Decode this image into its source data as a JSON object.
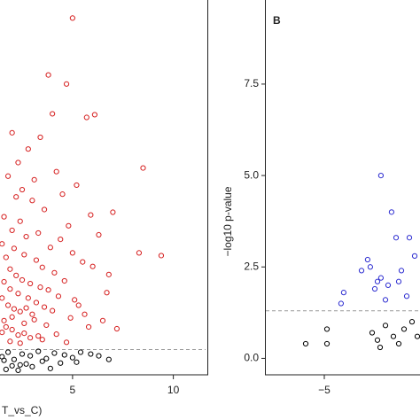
{
  "chart_data": [
    {
      "type": "scatter",
      "x_label": "T_vs_C)",
      "xlim": [
        1.4,
        11.6
      ],
      "ylim": [
        -1.5,
        40
      ],
      "xticks": [
        5,
        10
      ],
      "threshold": 1.3,
      "series": [
        {
          "color": "#d62020",
          "x": [
            5.0,
            3.8,
            4.7,
            5.7,
            6.1,
            4.0,
            2.0,
            3.4,
            8.5,
            9.4,
            7.0,
            8.3,
            6.8,
            6.7,
            5.6,
            2.3,
            2.8,
            3.1,
            2.5,
            3.0,
            4.2,
            4.5,
            5.2,
            4.8,
            5.9,
            6.3,
            3.6,
            2.2,
            1.8,
            1.6,
            2.0,
            2.4,
            2.7,
            3.3,
            3.9,
            4.4,
            5.0,
            5.5,
            6.0,
            2.1,
            2.6,
            3.2,
            3.5,
            4.1,
            4.6,
            1.5,
            1.7,
            1.9,
            2.2,
            2.5,
            2.9,
            3.4,
            3.8,
            4.3,
            5.1,
            1.6,
            1.9,
            2.3,
            2.8,
            3.2,
            1.5,
            1.8,
            2.1,
            2.4,
            2.7,
            3.0,
            3.6,
            4.0,
            4.9,
            5.3,
            1.6,
            2.0,
            2.6,
            3.1,
            3.7,
            1.5,
            1.7,
            2.0,
            2.3,
            2.6,
            2.9,
            3.3,
            4.2,
            5.8,
            6.5,
            7.2,
            1.9,
            2.4,
            3.5,
            4.7
          ],
          "values": [
            38.0,
            31.7,
            30.7,
            27.0,
            27.3,
            27.4,
            25.3,
            24.8,
            21.4,
            11.7,
            16.5,
            12.0,
            9.6,
            7.6,
            5.2,
            22.0,
            23.5,
            20.1,
            19.0,
            17.8,
            21.0,
            18.5,
            19.5,
            15.0,
            16.2,
            14.0,
            16.8,
            18.2,
            20.5,
            16.0,
            14.5,
            15.5,
            13.8,
            14.2,
            12.6,
            13.5,
            12.0,
            11.0,
            10.5,
            12.5,
            11.8,
            11.2,
            10.4,
            9.8,
            8.9,
            13.0,
            11.5,
            10.2,
            9.5,
            9.0,
            8.6,
            8.2,
            7.9,
            7.2,
            6.8,
            8.8,
            8.0,
            7.5,
            7.0,
            6.5,
            7.0,
            6.2,
            5.8,
            5.5,
            5.9,
            5.2,
            6.0,
            5.6,
            4.8,
            6.2,
            4.5,
            4.9,
            4.2,
            4.6,
            4.0,
            3.2,
            3.8,
            3.5,
            2.9,
            3.1,
            2.6,
            2.8,
            3.0,
            3.8,
            4.5,
            3.6,
            2.2,
            2.0,
            2.4,
            2.1
          ]
        },
        {
          "color": "#000000",
          "x": [
            1.5,
            1.8,
            2.1,
            2.5,
            2.9,
            3.3,
            3.7,
            4.1,
            4.6,
            5.0,
            5.4,
            5.9,
            6.3,
            6.8,
            2.0,
            2.7,
            3.5,
            4.4,
            1.7,
            2.3,
            3.0,
            3.9,
            5.2,
            1.6,
            2.4
          ],
          "values": [
            0.5,
            1.0,
            0.2,
            0.8,
            0.6,
            1.1,
            0.3,
            0.9,
            0.7,
            0.4,
            1.0,
            0.8,
            0.6,
            0.2,
            -0.5,
            -0.3,
            0.0,
            -0.2,
            -0.9,
            -1.0,
            -0.6,
            -0.8,
            -0.1,
            0.1,
            -0.4
          ]
        }
      ]
    },
    {
      "type": "scatter",
      "panel_label": "B",
      "y_label": "−log10 p‑value",
      "xlim": [
        -7.2,
        -1.4
      ],
      "ylim": [
        -0.45,
        9.8
      ],
      "xticks": [
        {
          "value": -5,
          "label": "−5"
        }
      ],
      "yticks": [
        {
          "value": 0,
          "label": "0.0"
        },
        {
          "value": 2.5,
          "label": "2.5"
        },
        {
          "value": 5,
          "label": "5.0"
        },
        {
          "value": 7.5,
          "label": "7.5"
        }
      ],
      "threshold": 1.3,
      "series": [
        {
          "color": "#2c2cd0",
          "x": [
            -2.87,
            -2.47,
            -2.3,
            -3.37,
            -3.27,
            -4.27,
            -4.37,
            -2.87,
            -3.0,
            -3.1,
            -2.6,
            -2.1,
            -1.8,
            -1.6,
            -3.6,
            -2.2,
            -1.9,
            -2.7
          ],
          "values": [
            5.0,
            4.0,
            3.3,
            2.7,
            2.5,
            1.8,
            1.5,
            2.2,
            2.1,
            1.9,
            2.0,
            2.4,
            3.3,
            2.8,
            2.4,
            2.1,
            1.7,
            1.6
          ]
        },
        {
          "color": "#000000",
          "x": [
            -5.7,
            -4.9,
            -4.9,
            -3.2,
            -3.0,
            -2.7,
            -2.4,
            -2.0,
            -1.7,
            -2.9,
            -2.2,
            -1.5
          ],
          "values": [
            0.4,
            0.8,
            0.4,
            0.7,
            0.5,
            0.9,
            0.6,
            0.8,
            1.0,
            0.3,
            0.4,
            0.6
          ]
        }
      ]
    }
  ]
}
